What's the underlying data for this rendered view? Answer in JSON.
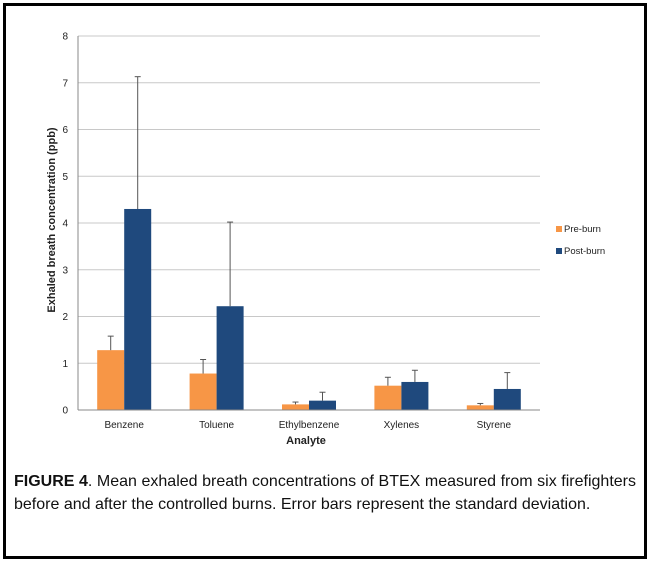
{
  "chart_data": {
    "type": "bar",
    "categories": [
      "Benzene",
      "Toluene",
      "Ethylbenzene",
      "Xylenes",
      "Styrene"
    ],
    "series": [
      {
        "name": "Pre-burn",
        "values": [
          1.28,
          0.78,
          0.12,
          0.52,
          0.1
        ],
        "errors": [
          0.3,
          0.3,
          0.05,
          0.18,
          0.04
        ]
      },
      {
        "name": "Post-burn",
        "values": [
          4.3,
          2.22,
          0.2,
          0.6,
          0.45
        ],
        "errors": [
          2.83,
          1.8,
          0.18,
          0.25,
          0.35
        ]
      }
    ],
    "xlabel": "Analyte",
    "ylabel": "Exhaled breath concentration (ppb)",
    "ylim": [
      0,
      8
    ],
    "yticks": [
      0,
      1,
      2,
      3,
      4,
      5,
      6,
      7,
      8
    ],
    "grid": true,
    "legend_position": "right",
    "colors": {
      "Pre-burn": "#f79646",
      "Post-burn": "#1f497d"
    }
  },
  "caption": {
    "label": "FIGURE 4",
    "text": ".   Mean exhaled breath concentrations of BTEX measured from six firefighters before and after the controlled burns. Error bars represent the standard deviation."
  }
}
